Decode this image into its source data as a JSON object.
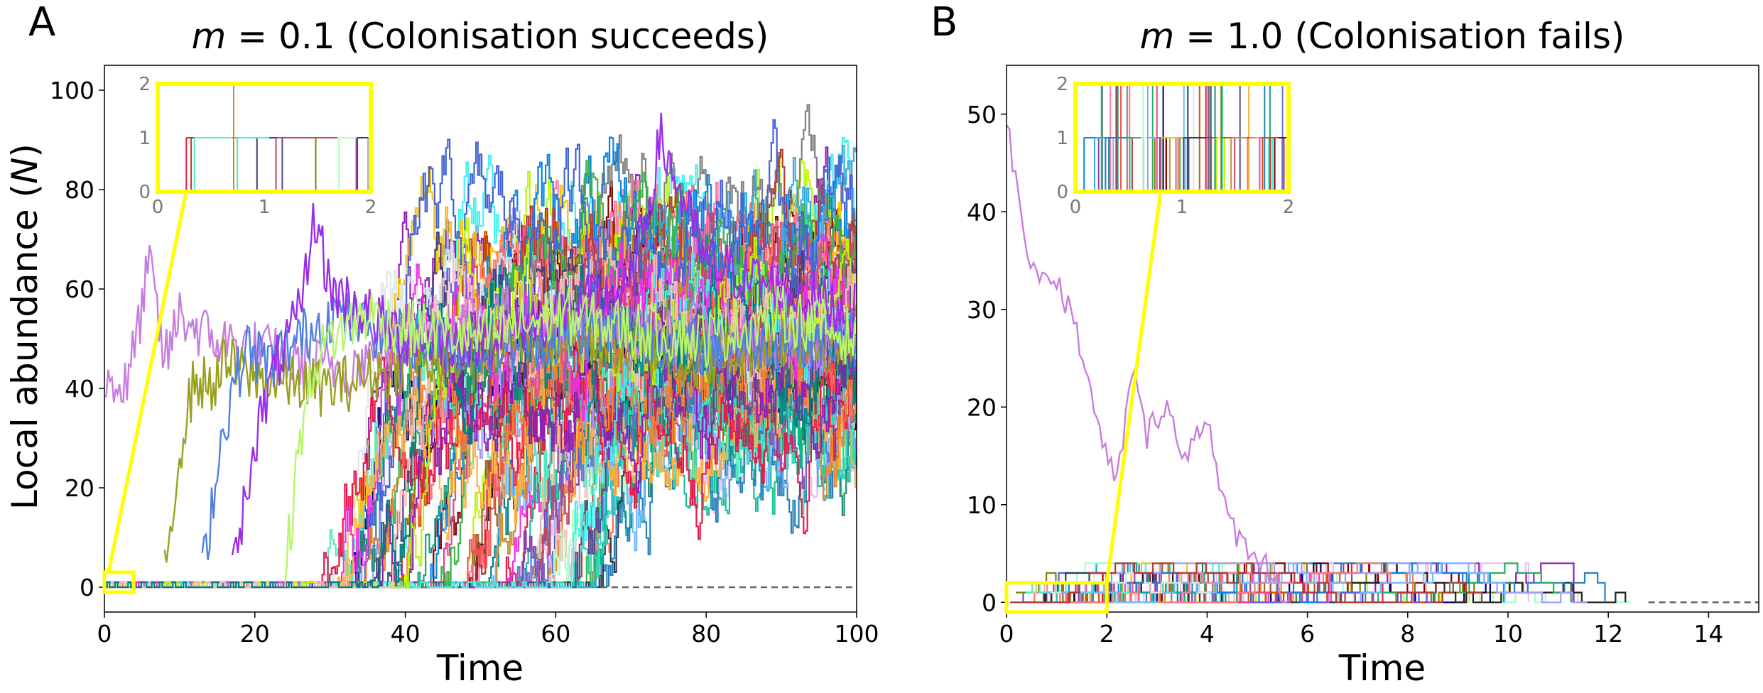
{
  "chart_data": [
    {
      "panel": "A",
      "type": "line",
      "title_var": "m",
      "title_rest": " = 0.1 (Colonisation succeeds)",
      "xlabel": "Time",
      "ylabel_pre": "Local abundance (",
      "ylabel_var": "N",
      "ylabel_post": ")",
      "xlim": [
        0,
        100
      ],
      "ylim": [
        -5,
        105
      ],
      "xticks": [
        0,
        20,
        40,
        60,
        80,
        100
      ],
      "yticks": [
        0,
        20,
        40,
        60,
        80,
        100
      ],
      "baseline": {
        "from": 66,
        "to": 100,
        "y": 0,
        "style": "dashed"
      },
      "inset": {
        "xlim": [
          0,
          2
        ],
        "ylim": [
          0,
          2
        ],
        "xticks": [
          0,
          1,
          2
        ],
        "yticks": [
          0,
          1,
          2
        ],
        "zoom_box": {
          "x": [
            0,
            2
          ],
          "y": [
            -1,
            3
          ]
        }
      },
      "highlight_series": [
        {
          "color": "#c77ce0",
          "start": 0,
          "x": [
            0,
            3,
            6,
            8,
            10,
            14,
            20,
            26,
            32,
            40,
            50,
            60,
            70,
            80,
            90,
            100
          ],
          "y": [
            42,
            40,
            65,
            45,
            55,
            50,
            48,
            45,
            44,
            50,
            55,
            55,
            50,
            52,
            48,
            50
          ]
        },
        {
          "color": "#99a020",
          "start": 8,
          "x": [
            8,
            10,
            12,
            14,
            16,
            20,
            30,
            40,
            50,
            60,
            70,
            80,
            90,
            100
          ],
          "y": [
            2,
            28,
            42,
            40,
            45,
            42,
            40,
            45,
            48,
            50,
            48,
            45,
            50,
            48
          ]
        },
        {
          "color": "#4f7fe0",
          "start": 13,
          "x": [
            13,
            15,
            17,
            19,
            22,
            26,
            30,
            40,
            50,
            60,
            70,
            80,
            90,
            100
          ],
          "y": [
            2,
            25,
            40,
            48,
            45,
            50,
            55,
            50,
            48,
            50,
            52,
            48,
            50,
            50
          ]
        },
        {
          "color": "#9a2de8",
          "start": 17,
          "x": [
            17,
            20,
            23,
            26,
            28,
            30,
            35,
            40,
            50,
            60,
            70,
            74,
            80,
            90,
            100
          ],
          "y": [
            2,
            30,
            45,
            55,
            75,
            60,
            55,
            50,
            50,
            55,
            60,
            90,
            65,
            60,
            55
          ]
        },
        {
          "color": "#b7f56a",
          "start": 24,
          "x": [
            24,
            26,
            28,
            30,
            35,
            40,
            50,
            60,
            70,
            80,
            90,
            100
          ],
          "y": [
            2,
            30,
            45,
            50,
            55,
            52,
            50,
            55,
            52,
            50,
            55,
            50
          ]
        }
      ],
      "bulk_series_count": 60,
      "bulk_start_range": [
        28,
        66
      ],
      "bulk_level_range": [
        30,
        75
      ]
    },
    {
      "panel": "B",
      "type": "line",
      "title_var": "m",
      "title_rest": " = 1.0 (Colonisation fails)",
      "xlabel": "Time",
      "xlim": [
        0,
        15
      ],
      "ylim": [
        -1,
        55
      ],
      "xticks": [
        0,
        2,
        4,
        6,
        8,
        10,
        12,
        14
      ],
      "yticks": [
        0,
        10,
        20,
        30,
        40,
        50
      ],
      "baseline": {
        "from": 12.8,
        "to": 15,
        "y": 0,
        "style": "dashed"
      },
      "inset": {
        "xlim": [
          0,
          2
        ],
        "ylim": [
          0,
          2
        ],
        "xticks": [
          0,
          1,
          2
        ],
        "yticks": [
          0,
          1,
          2
        ],
        "zoom_box": {
          "x": [
            0,
            2
          ],
          "y": [
            -1,
            2
          ]
        }
      },
      "highlight_series": [
        {
          "color": "#c77ce0",
          "start": 0,
          "x": [
            0,
            0.3,
            0.6,
            1,
            1.4,
            1.8,
            2.2,
            2.5,
            2.8,
            3.2,
            3.5,
            3.8,
            4.0,
            4.3,
            4.7,
            5.0,
            5.4,
            5.7
          ],
          "y": [
            50,
            38,
            34,
            33,
            28,
            18,
            12,
            24,
            17,
            21,
            14,
            18,
            19,
            10,
            6,
            5,
            2,
            0
          ]
        }
      ],
      "bulk_series_count": 40,
      "bulk_end_range": [
        4,
        12.8
      ],
      "bulk_level_max": 4
    }
  ],
  "panel_letters": [
    "A",
    "B"
  ],
  "colors": {
    "inset_frame": "#ffff00",
    "connector": "#ffff00",
    "baseline": "#666666"
  }
}
